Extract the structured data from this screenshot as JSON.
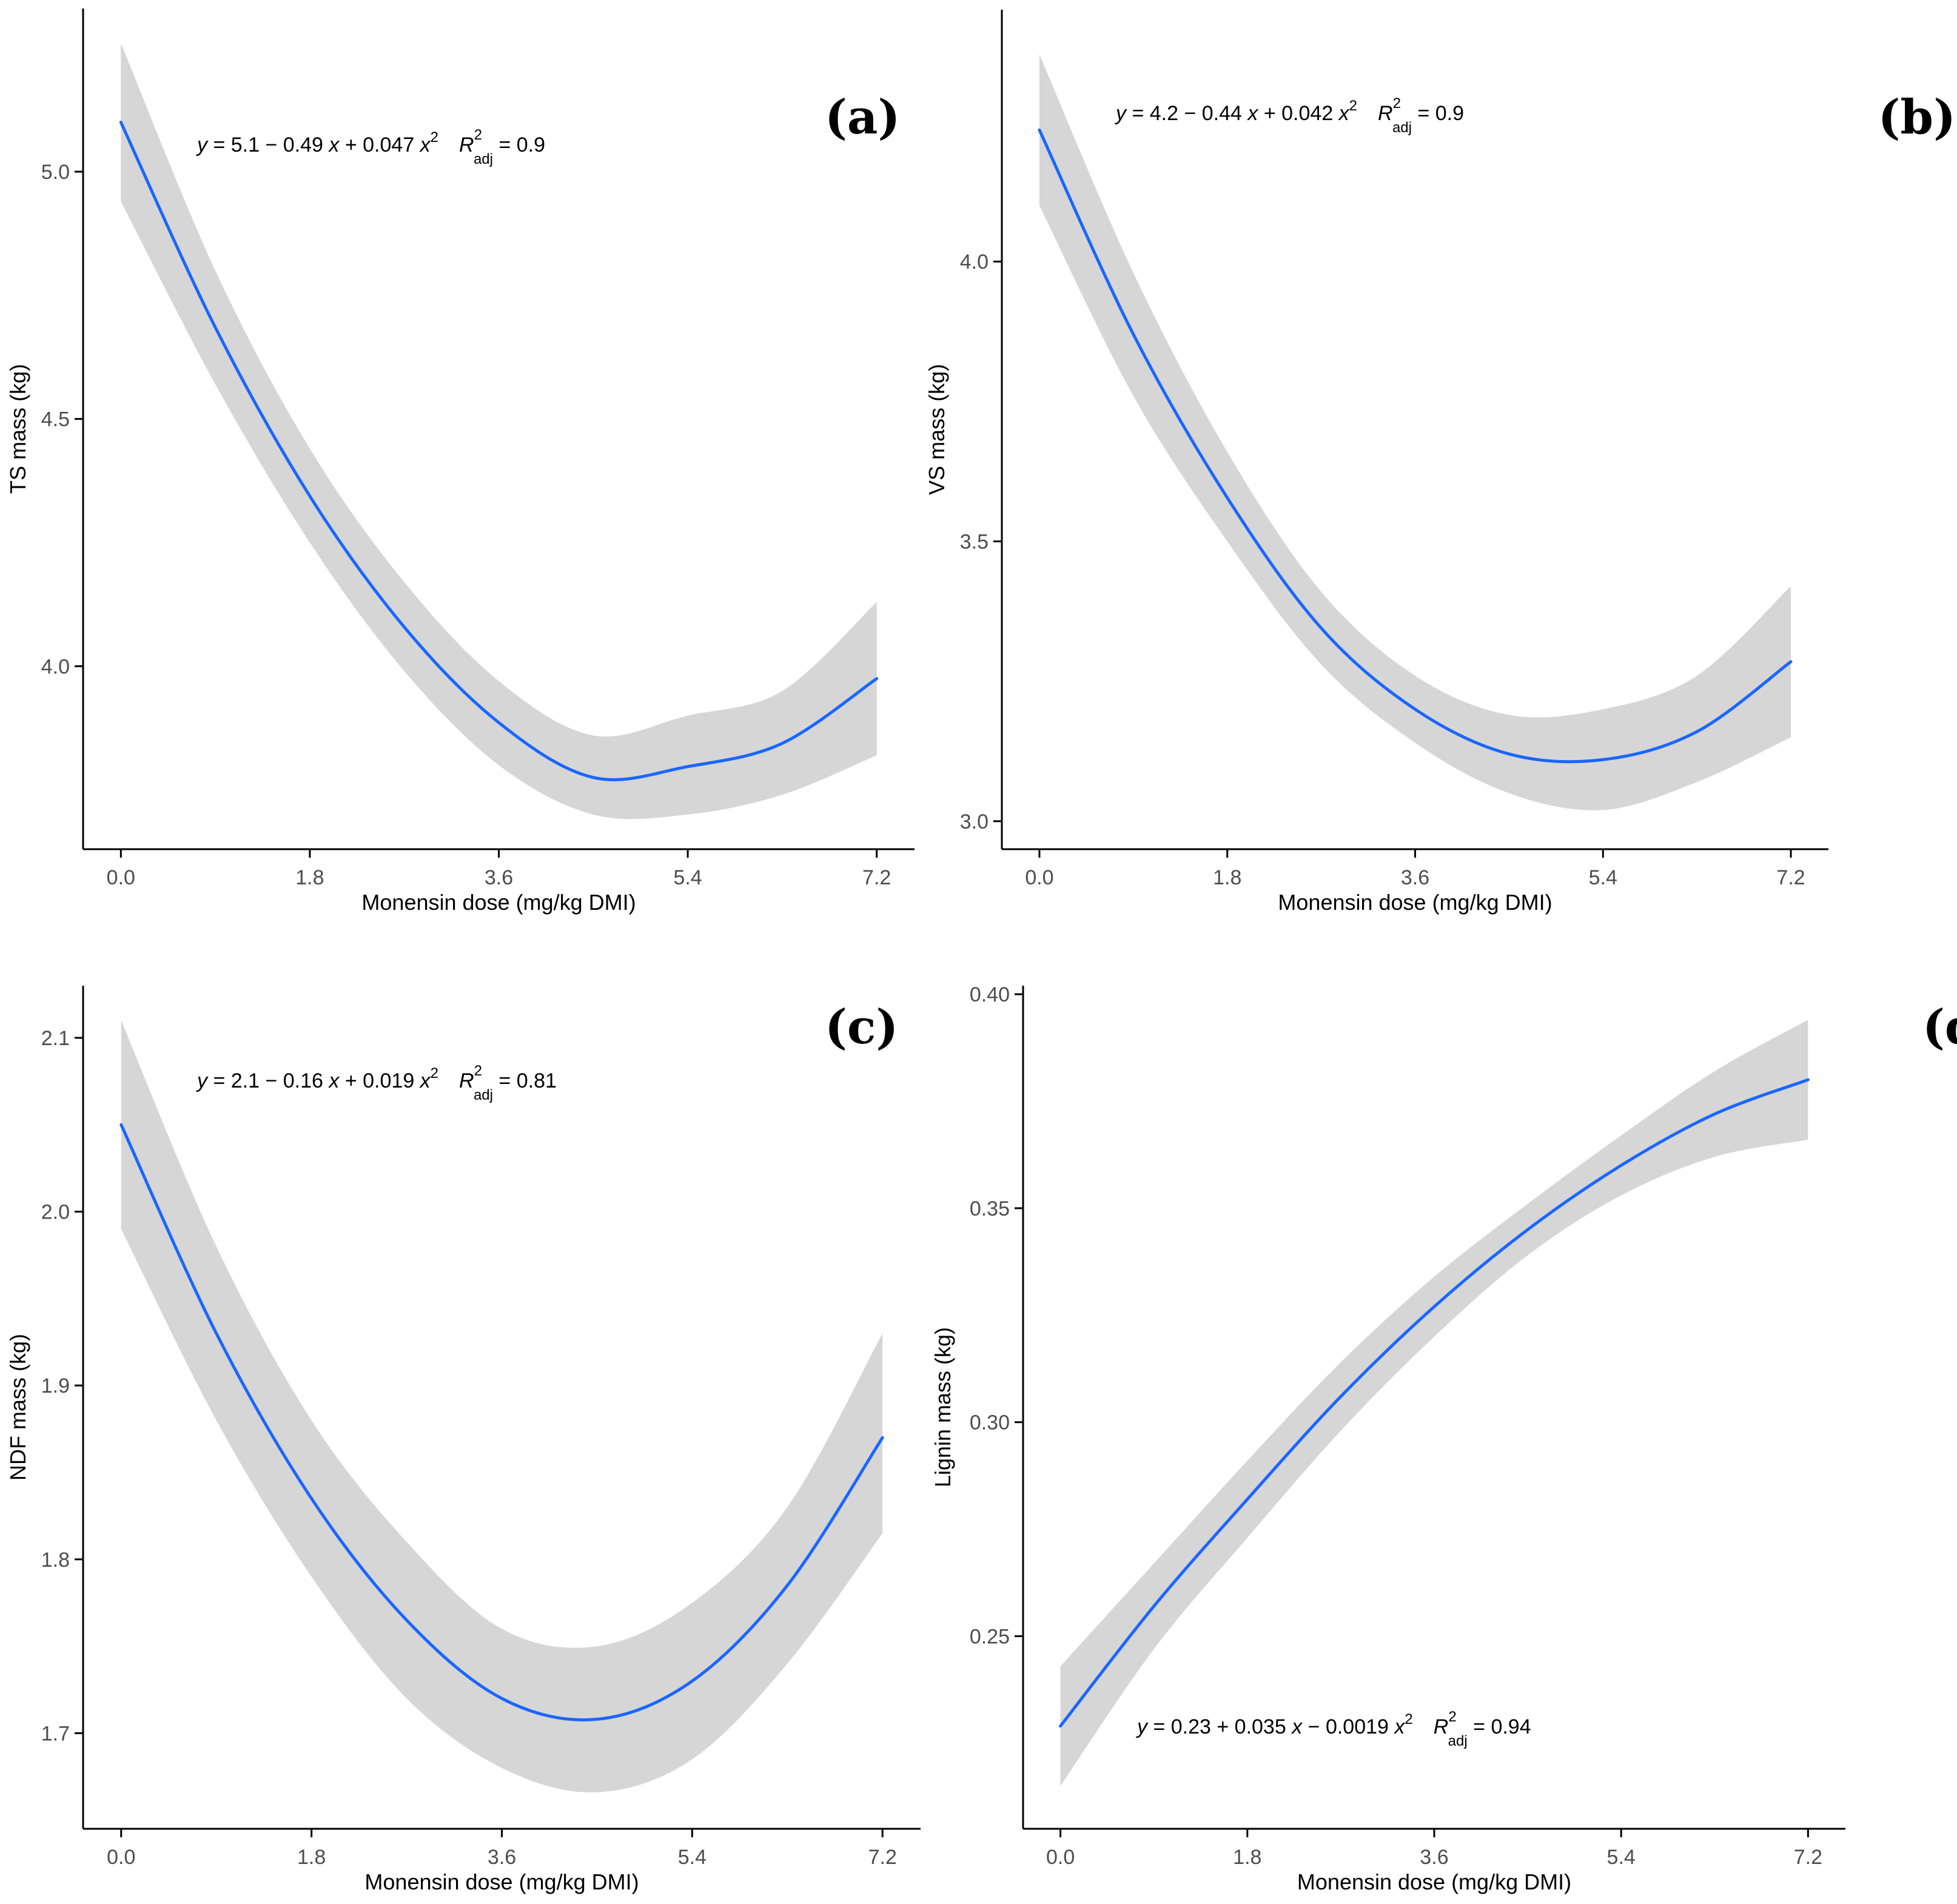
{
  "figure": {
    "colors": {
      "line": "#1a66ff",
      "band": "#d6d6d6",
      "axis": "#000000",
      "tick_label": "#4d4d4d"
    }
  },
  "chart_data": [
    {
      "id": "a",
      "type": "line",
      "panel_label": "(a)",
      "title": "",
      "xlabel": "Monensin dose (mg/kg DMI)",
      "ylabel": "TS mass (kg)",
      "xlim": [
        -0.36,
        7.56
      ],
      "ylim": [
        3.63,
        5.33
      ],
      "xticks": [
        0,
        1.8,
        3.6,
        5.4,
        7.2
      ],
      "xtick_labels": [
        "0.0",
        "1.8",
        "3.6",
        "5.4",
        "7.2"
      ],
      "yticks": [
        4.0,
        4.5,
        5.0
      ],
      "ytick_labels": [
        "4.0",
        "4.5",
        "5.0"
      ],
      "fit": {
        "intercept": 5.1,
        "b1": -0.49,
        "b2": 0.047
      },
      "curve": {
        "x": [
          0,
          0.9,
          1.8,
          2.7,
          3.6,
          4.5,
          5.4,
          6.3,
          7.2
        ],
        "y": [
          5.1,
          4.685,
          4.344,
          4.079,
          3.886,
          3.775,
          3.797,
          3.844,
          3.975
        ]
      },
      "ci_lower": [
        4.94,
        4.57,
        4.25,
        3.99,
        3.8,
        3.7,
        3.7,
        3.74,
        3.82
      ],
      "ci_upper": [
        5.26,
        4.8,
        4.44,
        4.17,
        3.97,
        3.86,
        3.9,
        3.95,
        4.13
      ],
      "equation": {
        "lhs": "y",
        "text": " = 5.1 − 0.49 ",
        "x1": "x",
        "mid": " + 0.047 ",
        "x2": "x",
        "sup": "2",
        "r": "R",
        "r_sup": "2",
        "r_sub": "adj",
        "r_val": " = 0.9"
      }
    },
    {
      "id": "b",
      "type": "line",
      "panel_label": "(b)",
      "title": "",
      "xlabel": "Monensin dose (mg/kg DMI)",
      "ylabel": "VS mass (kg)",
      "xlim": [
        -0.36,
        7.56
      ],
      "ylim": [
        2.95,
        4.45
      ],
      "xticks": [
        0,
        1.8,
        3.6,
        5.4,
        7.2
      ],
      "xtick_labels": [
        "0.0",
        "1.8",
        "3.6",
        "5.4",
        "7.2"
      ],
      "yticks": [
        3.0,
        3.5,
        4.0
      ],
      "ytick_labels": [
        "3.0",
        "3.5",
        "4.0"
      ],
      "fit": {
        "intercept": 4.2,
        "b1": -0.44,
        "b2": 0.042
      },
      "curve": {
        "x": [
          0,
          0.9,
          1.8,
          2.7,
          3.6,
          4.5,
          5.4,
          6.3,
          7.2
        ],
        "y": [
          4.235,
          3.87,
          3.578,
          3.345,
          3.2,
          3.12,
          3.11,
          3.16,
          3.285
        ]
      },
      "ci_lower": [
        4.1,
        3.76,
        3.5,
        3.28,
        3.14,
        3.05,
        3.02,
        3.07,
        3.15
      ],
      "ci_upper": [
        4.37,
        3.98,
        3.66,
        3.41,
        3.26,
        3.19,
        3.2,
        3.26,
        3.42
      ],
      "equation": {
        "lhs": "y",
        "text": " = 4.2 − 0.44 ",
        "x1": "x",
        "mid": " + 0.042 ",
        "x2": "x",
        "sup": "2",
        "r": "R",
        "r_sup": "2",
        "r_sub": "adj",
        "r_val": " = 0.9"
      }
    },
    {
      "id": "c",
      "type": "line",
      "panel_label": "(c)",
      "title": "",
      "xlabel": "Monensin dose (mg/kg DMI)",
      "ylabel": "NDF mass (kg)",
      "xlim": [
        -0.36,
        7.56
      ],
      "ylim": [
        1.645,
        2.13
      ],
      "xticks": [
        0,
        1.8,
        3.6,
        5.4,
        7.2
      ],
      "xtick_labels": [
        "0.0",
        "1.8",
        "3.6",
        "5.4",
        "7.2"
      ],
      "yticks": [
        1.7,
        1.8,
        1.9,
        2.0,
        2.1
      ],
      "ytick_labels": [
        "1.7",
        "1.8",
        "1.9",
        "2.0",
        "2.1"
      ],
      "fit": {
        "intercept": 2.1,
        "b1": -0.16,
        "b2": 0.019
      },
      "curve": {
        "x": [
          0,
          0.9,
          1.8,
          2.7,
          3.6,
          4.5,
          5.4,
          6.3,
          7.2
        ],
        "y": [
          2.05,
          1.93,
          1.835,
          1.765,
          1.72,
          1.708,
          1.73,
          1.785,
          1.87
        ]
      },
      "ci_lower": [
        1.99,
        1.88,
        1.79,
        1.72,
        1.68,
        1.666,
        1.685,
        1.74,
        1.815
      ],
      "ci_upper": [
        2.11,
        1.98,
        1.88,
        1.81,
        1.76,
        1.75,
        1.775,
        1.83,
        1.93
      ],
      "equation": {
        "lhs": "y",
        "text": " = 2.1 − 0.16 ",
        "x1": "x",
        "mid": " + 0.019 ",
        "x2": "x",
        "sup": "2",
        "r": "R",
        "r_sup": "2",
        "r_sub": "adj",
        "r_val": " = 0.81"
      }
    },
    {
      "id": "d",
      "type": "line",
      "panel_label": "(d)",
      "title": "",
      "xlabel": "Monensin dose (mg/kg DMI)",
      "ylabel": "Lignin mass (kg)",
      "xlim": [
        -0.36,
        7.56
      ],
      "ylim": [
        0.205,
        0.402
      ],
      "xticks": [
        0,
        1.8,
        3.6,
        5.4,
        7.2
      ],
      "xtick_labels": [
        "0.0",
        "1.8",
        "3.6",
        "5.4",
        "7.2"
      ],
      "yticks": [
        0.25,
        0.3,
        0.35,
        0.4
      ],
      "ytick_labels": [
        "0.25",
        "0.30",
        "0.35",
        "0.40"
      ],
      "fit": {
        "intercept": 0.23,
        "b1": 0.035,
        "b2": -0.0019
      },
      "curve": {
        "x": [
          0,
          0.9,
          1.8,
          2.7,
          3.6,
          4.5,
          5.4,
          6.3,
          7.2
        ],
        "y": [
          0.229,
          0.257,
          0.282,
          0.306,
          0.327,
          0.345,
          0.36,
          0.372,
          0.38
        ]
      },
      "ci_lower": [
        0.215,
        0.247,
        0.273,
        0.298,
        0.32,
        0.339,
        0.353,
        0.362,
        0.366
      ],
      "ci_upper": [
        0.243,
        0.267,
        0.291,
        0.314,
        0.334,
        0.351,
        0.367,
        0.382,
        0.394
      ],
      "equation": {
        "lhs": "y",
        "text": " = 0.23 + 0.035 ",
        "x1": "x",
        "mid": " − 0.0019 ",
        "x2": "x",
        "sup": "2",
        "r": "R",
        "r_sup": "2",
        "r_sub": "adj",
        "r_val": " = 0.94"
      }
    }
  ]
}
